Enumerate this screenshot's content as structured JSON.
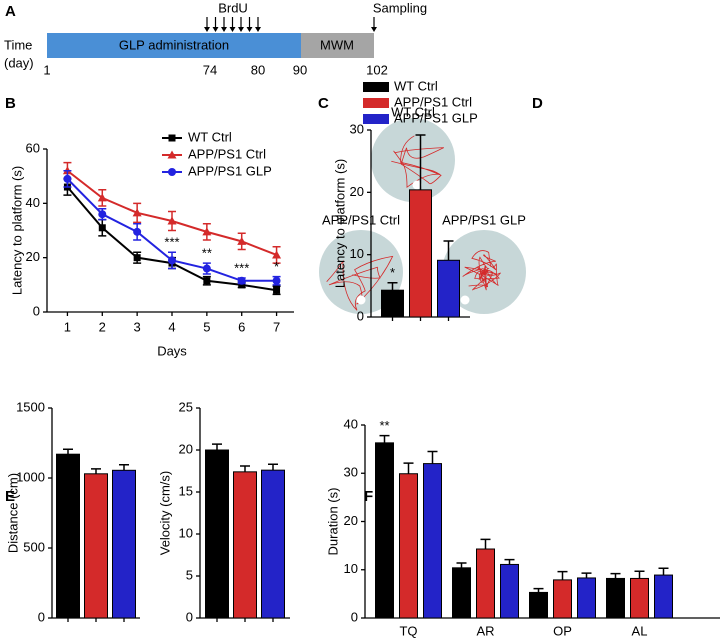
{
  "panel_letters": [
    "A",
    "B",
    "C",
    "D",
    "E",
    "F"
  ],
  "timeline": {
    "time_label": "Time",
    "day_label": "(day)",
    "phases": [
      "GLP administration",
      "MWM"
    ],
    "day_ticks": [
      1,
      74,
      80,
      90,
      102
    ],
    "brdu": "BrdU",
    "sampling": "Sampling"
  },
  "trajectories": {
    "labels": [
      "WT Ctrl",
      "APP/PS1 Ctrl",
      "APP/PS1 GLP"
    ]
  },
  "chart_data": [
    {
      "type": "line",
      "x": [
        1,
        2,
        3,
        4,
        5,
        6,
        7
      ],
      "xlim": [
        0.5,
        7.5
      ],
      "xticks": [
        1,
        2,
        3,
        4,
        5,
        6,
        7
      ],
      "ylim": [
        0,
        60
      ],
      "yticks": [
        0,
        20,
        40,
        60
      ],
      "x_label": "Days",
      "y_label": "Latency to platform (s)",
      "legend": "top-right",
      "series": [
        {
          "name": "WT Ctrl",
          "color": "#000000",
          "marker": "square",
          "values": [
            46,
            31,
            20,
            18,
            11.5,
            10,
            8
          ],
          "errors": [
            3,
            3,
            2,
            2,
            1.5,
            1,
            1.5
          ]
        },
        {
          "name": "APP/PS1 Ctrl",
          "color": "#d42a2a",
          "marker": "triangle",
          "values": [
            52,
            42,
            36.5,
            33.5,
            29.5,
            26,
            21
          ],
          "errors": [
            3,
            3,
            3.5,
            3.5,
            3,
            3,
            3
          ]
        },
        {
          "name": "APP/PS1 GLP",
          "color": "#2323e0",
          "marker": "circle",
          "values": [
            49,
            36,
            29.5,
            19,
            16,
            11.5,
            11.5
          ],
          "errors": [
            3,
            2,
            3,
            3,
            2,
            1,
            1.5
          ]
        }
      ],
      "annotations": [
        {
          "x": 4,
          "text": "***"
        },
        {
          "x": 5,
          "text": "**"
        },
        {
          "x": 6,
          "text": "***"
        },
        {
          "x": 7,
          "text": "*"
        }
      ]
    },
    {
      "type": "bar",
      "ylim": [
        0,
        30
      ],
      "yticks": [
        0,
        10,
        20,
        30
      ],
      "y_label": "Latency to platform (s)",
      "legend": "top",
      "series": [
        {
          "name": "WT Ctrl",
          "color": "#000000",
          "values": [
            4.3
          ],
          "errors": [
            1.2
          ]
        },
        {
          "name": "APP/PS1 Ctrl",
          "color": "#d42a2a",
          "values": [
            20.4
          ],
          "errors": [
            8.8
          ]
        },
        {
          "name": "APP/PS1 GLP",
          "color": "#2323c8",
          "values": [
            9.1
          ],
          "errors": [
            3.1
          ]
        }
      ],
      "annotations": [
        {
          "text": "*"
        }
      ]
    },
    {
      "type": "bar",
      "ylim": [
        0,
        1500
      ],
      "yticks": [
        0,
        500,
        1000,
        1500
      ],
      "y_label": "Distance (cm)",
      "series": [
        {
          "color": "#000000",
          "values": [
            1170
          ],
          "errors": [
            35
          ]
        },
        {
          "color": "#d42a2a",
          "values": [
            1030
          ],
          "errors": [
            35
          ]
        },
        {
          "color": "#2323c8",
          "values": [
            1055
          ],
          "errors": [
            40
          ]
        }
      ]
    },
    {
      "type": "bar",
      "ylim": [
        0,
        25
      ],
      "yticks": [
        0,
        5,
        10,
        15,
        20,
        25
      ],
      "y_label": "Velocity (cm/s)",
      "series": [
        {
          "color": "#000000",
          "values": [
            20
          ],
          "errors": [
            0.7
          ]
        },
        {
          "color": "#d42a2a",
          "values": [
            17.4
          ],
          "errors": [
            0.7
          ]
        },
        {
          "color": "#2323c8",
          "values": [
            17.6
          ],
          "errors": [
            0.7
          ]
        }
      ]
    },
    {
      "type": "bar",
      "categories": [
        "TQ",
        "AR",
        "OP",
        "AL"
      ],
      "ylim": [
        0,
        40
      ],
      "yticks": [
        0,
        10,
        20,
        30,
        40
      ],
      "y_label": "Duration (s)",
      "series": [
        {
          "color": "#000000",
          "values": [
            36.3,
            10.4,
            5.3,
            8.2
          ],
          "errors": [
            1.5,
            1,
            0.8,
            1
          ]
        },
        {
          "color": "#d42a2a",
          "values": [
            29.9,
            14.3,
            7.9,
            8.2
          ],
          "errors": [
            2.2,
            2,
            1.7,
            1.5
          ]
        },
        {
          "color": "#2323c8",
          "values": [
            32,
            11.1,
            8.3,
            8.9
          ],
          "errors": [
            2.5,
            1,
            1,
            1.4
          ]
        }
      ],
      "annotations": [
        {
          "text": "**"
        }
      ]
    }
  ]
}
